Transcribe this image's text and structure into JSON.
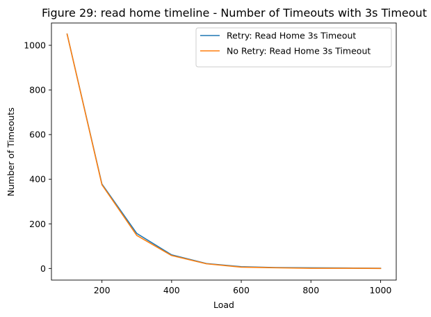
{
  "chart_data": {
    "type": "line",
    "title": "Figure 29: read home timeline - Number of Timeouts with 3s Timeout",
    "xlabel": "Load",
    "ylabel": "Number of Timeouts",
    "xlim": [
      55,
      1045
    ],
    "ylim": [
      -52,
      1100
    ],
    "xticks": [
      200,
      400,
      600,
      800,
      1000
    ],
    "yticks": [
      0,
      200,
      400,
      600,
      800,
      1000
    ],
    "grid": false,
    "legend_position": "top-right",
    "series": [
      {
        "name": "Retry: Read Home 3s Timeout",
        "color": "#1f77b4",
        "x": [
          100,
          200,
          300,
          400,
          500,
          600,
          700,
          800,
          900,
          1000
        ],
        "y": [
          1050,
          378,
          157,
          61,
          22,
          8,
          4,
          3,
          2,
          1
        ]
      },
      {
        "name": "No Retry: Read Home 3s Timeout",
        "color": "#ff7f0e",
        "x": [
          100,
          200,
          300,
          400,
          500,
          600,
          700,
          800,
          900,
          1000
        ],
        "y": [
          1050,
          375,
          148,
          58,
          21,
          6,
          3,
          1,
          1,
          0
        ]
      }
    ]
  }
}
